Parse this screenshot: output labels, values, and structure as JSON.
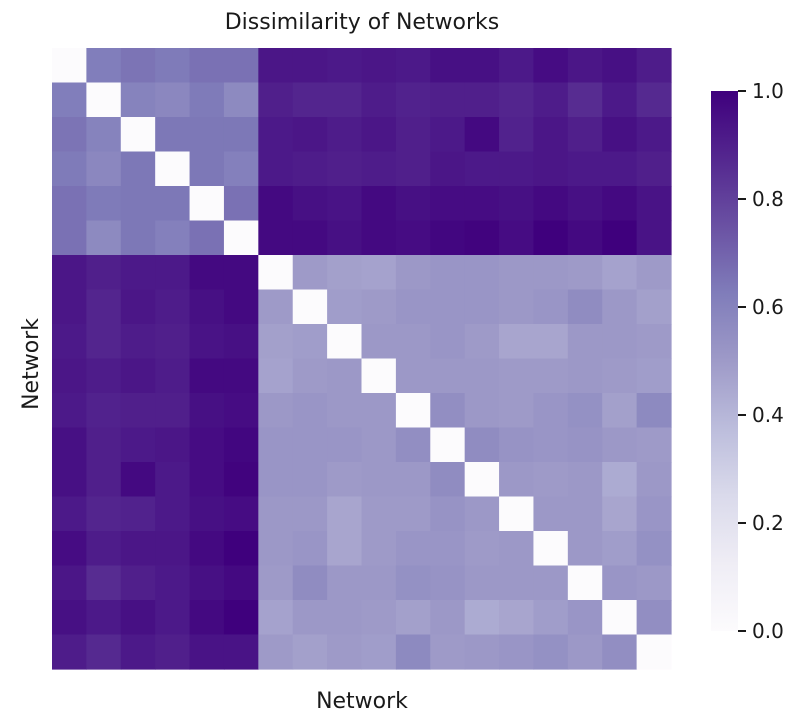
{
  "chart_data": {
    "type": "heatmap",
    "title": "Dissimilarity of Networks",
    "xlabel": "Network",
    "ylabel": "Network",
    "n": 18,
    "colormap": "Purples",
    "colorbar": {
      "range": [
        0.0,
        1.0
      ],
      "ticks": [
        0.0,
        0.2,
        0.4,
        0.6,
        0.8,
        1.0
      ],
      "tick_labels": [
        "0.0",
        "0.2",
        "0.4",
        "0.6",
        "0.8",
        "1.0"
      ]
    },
    "colors": {
      "low": "#fcfbfd",
      "mid": "#9e9ac8",
      "high": "#3f007d"
    },
    "matrix": [
      [
        0.0,
        0.62,
        0.65,
        0.63,
        0.66,
        0.66,
        0.93,
        0.93,
        0.92,
        0.93,
        0.92,
        0.95,
        0.95,
        0.92,
        0.96,
        0.93,
        0.95,
        0.91
      ],
      [
        0.62,
        0.0,
        0.6,
        0.58,
        0.63,
        0.57,
        0.9,
        0.88,
        0.88,
        0.91,
        0.89,
        0.9,
        0.9,
        0.88,
        0.91,
        0.86,
        0.92,
        0.87
      ],
      [
        0.65,
        0.6,
        0.0,
        0.64,
        0.64,
        0.64,
        0.92,
        0.93,
        0.91,
        0.93,
        0.9,
        0.92,
        0.97,
        0.89,
        0.93,
        0.9,
        0.95,
        0.92
      ],
      [
        0.63,
        0.58,
        0.64,
        0.0,
        0.64,
        0.61,
        0.92,
        0.91,
        0.9,
        0.91,
        0.9,
        0.93,
        0.92,
        0.92,
        0.93,
        0.92,
        0.92,
        0.9
      ],
      [
        0.66,
        0.63,
        0.64,
        0.64,
        0.0,
        0.66,
        0.97,
        0.95,
        0.94,
        0.97,
        0.95,
        0.96,
        0.96,
        0.95,
        0.97,
        0.95,
        0.97,
        0.94
      ],
      [
        0.66,
        0.57,
        0.64,
        0.61,
        0.66,
        0.0,
        0.97,
        0.97,
        0.95,
        0.97,
        0.96,
        0.98,
        0.99,
        0.96,
        1.0,
        0.97,
        1.0,
        0.94
      ],
      [
        0.93,
        0.9,
        0.92,
        0.92,
        0.97,
        0.97,
        0.0,
        0.5,
        0.48,
        0.47,
        0.51,
        0.52,
        0.52,
        0.51,
        0.51,
        0.5,
        0.47,
        0.5
      ],
      [
        0.93,
        0.88,
        0.93,
        0.91,
        0.95,
        0.97,
        0.5,
        0.0,
        0.49,
        0.5,
        0.52,
        0.52,
        0.52,
        0.51,
        0.52,
        0.56,
        0.51,
        0.48
      ],
      [
        0.92,
        0.88,
        0.91,
        0.9,
        0.94,
        0.95,
        0.48,
        0.49,
        0.0,
        0.51,
        0.51,
        0.52,
        0.5,
        0.46,
        0.46,
        0.51,
        0.51,
        0.5
      ],
      [
        0.93,
        0.91,
        0.93,
        0.91,
        0.97,
        0.97,
        0.47,
        0.5,
        0.51,
        0.0,
        0.51,
        0.51,
        0.51,
        0.5,
        0.5,
        0.51,
        0.5,
        0.49
      ],
      [
        0.92,
        0.89,
        0.9,
        0.9,
        0.95,
        0.96,
        0.51,
        0.52,
        0.51,
        0.51,
        0.0,
        0.55,
        0.51,
        0.5,
        0.52,
        0.54,
        0.48,
        0.57
      ],
      [
        0.95,
        0.9,
        0.92,
        0.93,
        0.96,
        0.98,
        0.52,
        0.52,
        0.52,
        0.51,
        0.55,
        0.0,
        0.56,
        0.53,
        0.52,
        0.53,
        0.51,
        0.5
      ],
      [
        0.95,
        0.9,
        0.97,
        0.92,
        0.96,
        0.99,
        0.52,
        0.52,
        0.5,
        0.51,
        0.51,
        0.56,
        0.0,
        0.51,
        0.5,
        0.51,
        0.44,
        0.51
      ],
      [
        0.92,
        0.88,
        0.89,
        0.92,
        0.95,
        0.96,
        0.51,
        0.51,
        0.46,
        0.5,
        0.5,
        0.53,
        0.51,
        0.0,
        0.51,
        0.51,
        0.46,
        0.52
      ],
      [
        0.96,
        0.91,
        0.93,
        0.93,
        0.97,
        1.0,
        0.51,
        0.52,
        0.46,
        0.5,
        0.52,
        0.52,
        0.5,
        0.51,
        0.0,
        0.51,
        0.49,
        0.54
      ],
      [
        0.93,
        0.86,
        0.9,
        0.92,
        0.95,
        0.97,
        0.5,
        0.56,
        0.51,
        0.51,
        0.54,
        0.53,
        0.51,
        0.51,
        0.51,
        0.0,
        0.52,
        0.51
      ],
      [
        0.95,
        0.92,
        0.95,
        0.92,
        0.97,
        1.0,
        0.47,
        0.51,
        0.51,
        0.5,
        0.48,
        0.51,
        0.44,
        0.46,
        0.49,
        0.52,
        0.0,
        0.55
      ],
      [
        0.91,
        0.87,
        0.92,
        0.9,
        0.94,
        0.94,
        0.5,
        0.48,
        0.5,
        0.49,
        0.57,
        0.5,
        0.51,
        0.52,
        0.54,
        0.51,
        0.55,
        0.0
      ]
    ]
  }
}
